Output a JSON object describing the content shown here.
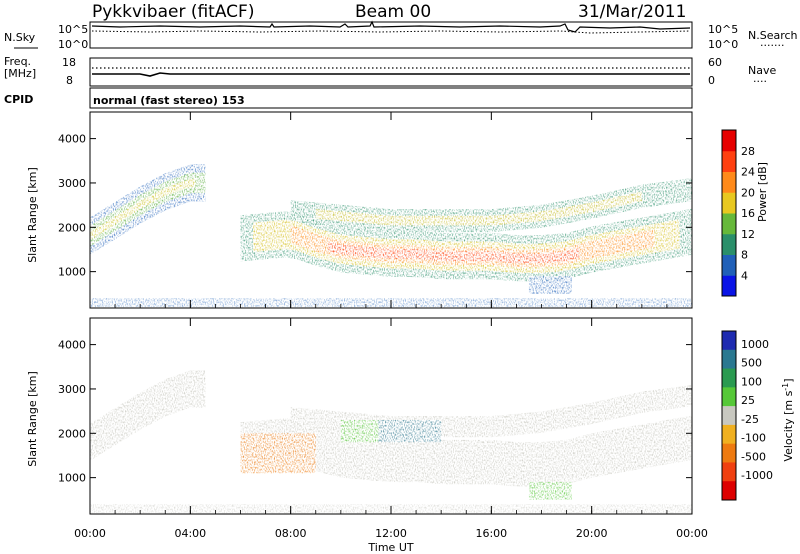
{
  "header": {
    "radar": "Pykkvibaer (fitACF)",
    "beam": "Beam 00",
    "date": "31/Mar/2011"
  },
  "panels": {
    "nsky": {
      "left_label": "N.Sky",
      "left_ticks": [
        "10^5",
        "10^0"
      ],
      "right_ticks": [
        "10^5",
        "10^0"
      ],
      "right_label": "N.Search",
      "right_dots": "·······"
    },
    "freq": {
      "left_label_1": "Freq.",
      "left_label_2": "[MHz]",
      "left_ticks": [
        "18",
        "8"
      ],
      "right_ticks": [
        "60",
        "0"
      ],
      "right_label": "Nave",
      "right_dots": "····"
    },
    "cpid": {
      "label": "CPID",
      "text": "normal (fast stereo) 153"
    }
  },
  "axes": {
    "y_label": "Slant Range [km]",
    "y_ticks": [
      "1000",
      "2000",
      "3000",
      "4000"
    ],
    "x_label": "Time UT",
    "x_ticks": [
      "00:00",
      "04:00",
      "08:00",
      "12:00",
      "16:00",
      "20:00",
      "00:00"
    ]
  },
  "colorbars": {
    "power": {
      "label": "Power [dB]",
      "ticks": [
        "4",
        "8",
        "12",
        "16",
        "20",
        "24",
        "28"
      ],
      "colors": [
        "#0a14e6",
        "#2060b8",
        "#2a8f6a",
        "#66b83a",
        "#e8c820",
        "#ff8a1a",
        "#ff4010",
        "#e60000"
      ]
    },
    "velocity": {
      "label": "Velocity [m s",
      "label_sup": "-1",
      "label_end": "]",
      "ticks": [
        "1000",
        "500",
        "100",
        "25",
        "-25",
        "-100",
        "-500",
        "-1000"
      ],
      "colors": [
        "#1e2bb0",
        "#2a7890",
        "#2a9a50",
        "#56c838",
        "#c8c8c0",
        "#f0b020",
        "#ee7a10",
        "#f04010",
        "#dd0000"
      ]
    }
  },
  "chart_data": {
    "type": "heatmap",
    "x_range": [
      "00:00",
      "24:00"
    ],
    "y_range_km": [
      180,
      4600
    ],
    "power_band_centers_km": [
      [
        0.0,
        1800
      ],
      [
        1.0,
        2150
      ],
      [
        2.0,
        2500
      ],
      [
        3.0,
        2800
      ],
      [
        4.0,
        3000
      ],
      [
        6.0,
        1750
      ],
      [
        7.0,
        1800
      ],
      [
        8.0,
        1850
      ],
      [
        9.0,
        1650
      ],
      [
        10.0,
        1500
      ],
      [
        11.0,
        1450
      ],
      [
        12.0,
        1400
      ],
      [
        13.0,
        1400
      ],
      [
        14.0,
        1350
      ],
      [
        15.0,
        1350
      ],
      [
        16.0,
        1350
      ],
      [
        17.0,
        1300
      ],
      [
        18.0,
        1300
      ],
      [
        19.0,
        1350
      ],
      [
        20.0,
        1500
      ],
      [
        21.0,
        1600
      ],
      [
        22.0,
        1700
      ],
      [
        23.0,
        1800
      ],
      [
        24.0,
        1900
      ]
    ],
    "upper_band_centers_km": [
      [
        8.0,
        2350
      ],
      [
        10.0,
        2250
      ],
      [
        12.0,
        2150
      ],
      [
        14.0,
        2150
      ],
      [
        16.0,
        2150
      ],
      [
        18.0,
        2250
      ],
      [
        20.0,
        2450
      ],
      [
        22.0,
        2700
      ],
      [
        24.0,
        2850
      ]
    ],
    "velocity_notes": [
      "mostly ground scatter near 0 m/s",
      "positive velocities near 2000 km at 10:00-14:00",
      "negative velocities near 1500 km at 06:00-09:00"
    ]
  }
}
